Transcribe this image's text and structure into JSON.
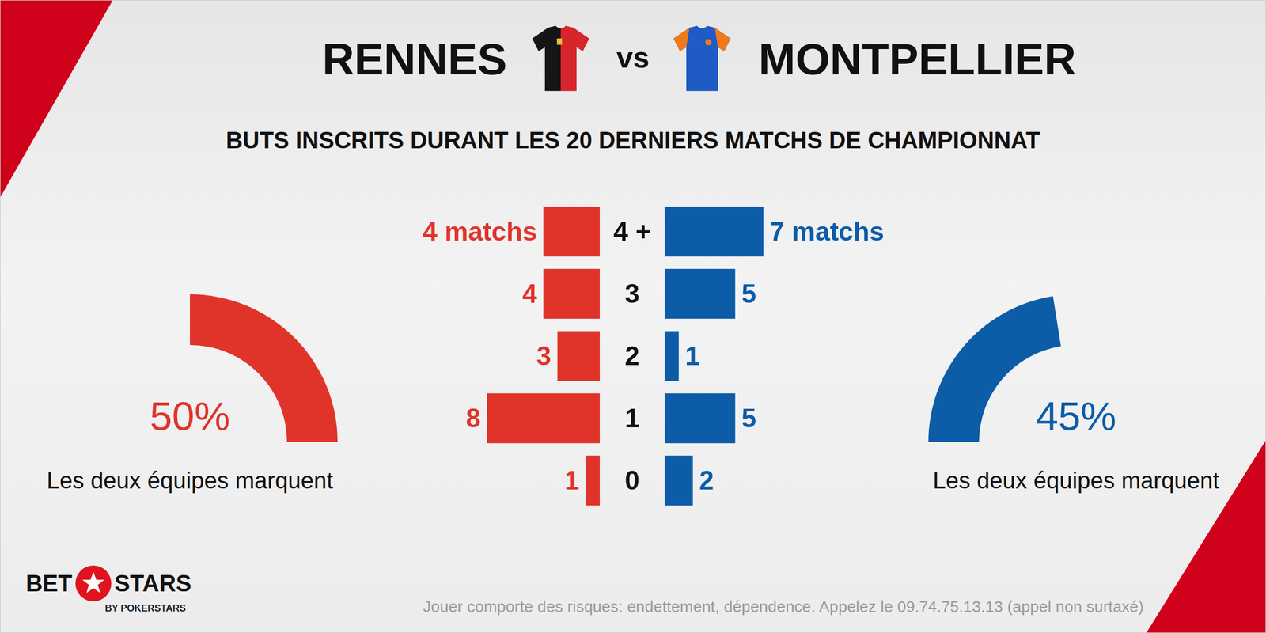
{
  "header": {
    "home": "RENNES",
    "separator": "vs",
    "away": "MONTPELLIER"
  },
  "chart_data": [
    {
      "type": "bar",
      "orientation": "horizontal",
      "title": "BUTS INSCRITS DURANT LES 20 DERNIERS MATCHS DE CHAMPIONNAT",
      "categories": [
        "4 +",
        "3",
        "2",
        "1",
        "0"
      ],
      "xlim": [
        0,
        8
      ],
      "tick_labels": "y",
      "grid": false,
      "data_labels": true,
      "series": [
        {
          "name": "RENNES",
          "color": "#e0342b",
          "values": [
            4,
            4,
            3,
            8,
            1
          ],
          "value_labels": [
            "4 matchs",
            "4",
            "3",
            "8",
            "1"
          ]
        },
        {
          "name": "MONTPELLIER",
          "color": "#0d5ca8",
          "values": [
            7,
            5,
            1,
            5,
            2
          ],
          "value_labels": [
            "7 matchs",
            "5",
            "1",
            "5",
            "2"
          ]
        }
      ]
    },
    {
      "type": "gauge",
      "title": "Les deux équipes marquent",
      "range": [
        0,
        100
      ],
      "values": [
        50
      ],
      "value_labels": [
        "50%"
      ],
      "color": "#e0342b"
    },
    {
      "type": "gauge",
      "title": "Les deux équipes marquent",
      "range": [
        0,
        100
      ],
      "values": [
        45
      ],
      "value_labels": [
        "45%"
      ],
      "color": "#0d5ca8"
    }
  ],
  "footer": "Jouer comporte des risques: endettement, dépendence. Appelez le 09.74.75.13.13 (appel non surtaxé)",
  "logo": {
    "left": "BET",
    "right": "STARS",
    "subtitle": "BY POKERSTARS"
  }
}
